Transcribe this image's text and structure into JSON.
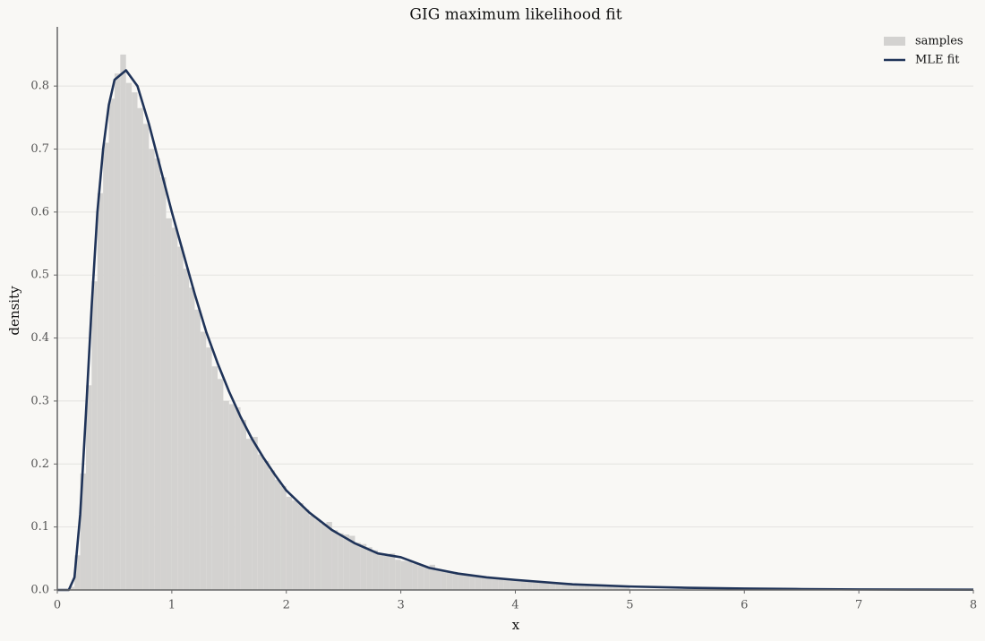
{
  "chart_data": {
    "type": "histogram",
    "title": "GIG maximum likelihood fit",
    "xlabel": "x",
    "ylabel": "density",
    "xlim": [
      0,
      8
    ],
    "ylim": [
      0,
      0.894
    ],
    "xticks": [
      0,
      1,
      2,
      3,
      4,
      5,
      6,
      7,
      8
    ],
    "yticks": [
      {
        "value": 0,
        "label": "0.0"
      },
      0.1,
      0.2,
      0.3,
      0.4,
      0.5,
      0.6,
      0.7,
      0.8
    ],
    "grid": "y",
    "legend": "upper right",
    "series": [
      {
        "name": "samples",
        "type": "histogram",
        "color": "#d3d2d0",
        "bins": [
          0,
          0.05,
          0.1,
          0.15,
          0.2,
          0.25,
          0.3,
          0.35,
          0.4,
          0.45,
          0.5,
          0.55,
          0.6,
          0.65,
          0.7,
          0.75,
          0.8,
          0.85,
          0.9,
          0.95,
          1,
          1.05,
          1.1,
          1.15,
          1.2,
          1.25,
          1.3,
          1.35,
          1.4,
          1.45,
          1.5,
          1.55,
          1.6,
          1.65,
          1.7,
          1.75,
          1.8,
          1.85,
          1.9,
          1.95,
          2,
          2.05,
          2.1,
          2.15,
          2.2,
          2.25,
          2.3,
          2.35,
          2.4,
          2.45,
          2.5,
          2.55,
          2.6,
          2.65,
          2.7,
          2.75,
          2.8,
          2.85,
          2.9,
          2.95,
          3,
          3.05,
          3.1,
          3.15,
          3.2,
          3.25,
          3.3,
          3.35,
          3.4,
          3.45,
          3.5,
          3.55,
          3.6,
          3.65,
          3.7,
          3.75,
          3.8,
          3.85,
          3.9,
          3.95,
          4,
          4.05,
          4.1,
          4.15,
          4.2,
          4.25,
          4.3,
          4.35,
          4.4,
          4.45,
          4.5,
          4.55,
          4.6,
          4.65,
          4.7,
          4.75,
          4.8,
          4.85,
          4.9,
          4.95,
          5
        ],
        "values": [
          0,
          0,
          0.005,
          0.055,
          0.185,
          0.325,
          0.49,
          0.63,
          0.71,
          0.78,
          0.82,
          0.85,
          0.805,
          0.79,
          0.765,
          0.74,
          0.7,
          0.685,
          0.655,
          0.59,
          0.575,
          0.545,
          0.51,
          0.48,
          0.445,
          0.41,
          0.385,
          0.355,
          0.335,
          0.3,
          0.295,
          0.29,
          0.27,
          0.24,
          0.243,
          0.215,
          0.205,
          0.19,
          0.175,
          0.165,
          0.148,
          0.142,
          0.138,
          0.128,
          0.118,
          0.112,
          0.105,
          0.108,
          0.095,
          0.09,
          0.088,
          0.086,
          0.075,
          0.073,
          0.068,
          0.063,
          0.058,
          0.054,
          0.058,
          0.048,
          0.046,
          0.045,
          0.042,
          0.039,
          0.036,
          0.04,
          0.033,
          0.031,
          0.029,
          0.027,
          0.025,
          0.024,
          0.022,
          0.021,
          0.02,
          0.019,
          0.018,
          0.017,
          0.016,
          0.015,
          0.015,
          0.014,
          0.013,
          0.012,
          0.012,
          0.011,
          0.01,
          0.01,
          0.009,
          0.009,
          0.008,
          0.008,
          0.007,
          0.007,
          0.007,
          0.006,
          0.006,
          0.006,
          0.005,
          0.005
        ]
      },
      {
        "name": "MLE fit",
        "type": "line",
        "color": "#1f3358",
        "x": [
          0,
          0.1,
          0.15,
          0.2,
          0.25,
          0.3,
          0.35,
          0.4,
          0.45,
          0.5,
          0.6,
          0.7,
          0.8,
          0.9,
          1,
          1.1,
          1.2,
          1.3,
          1.4,
          1.5,
          1.6,
          1.7,
          1.8,
          1.9,
          2,
          2.2,
          2.4,
          2.6,
          2.8,
          3,
          3.25,
          3.5,
          3.75,
          4,
          4.5,
          5,
          5.5,
          6,
          6.5,
          7,
          7.5,
          8
        ],
        "values": [
          0,
          0,
          0.02,
          0.12,
          0.28,
          0.45,
          0.6,
          0.7,
          0.77,
          0.81,
          0.825,
          0.8,
          0.74,
          0.67,
          0.6,
          0.535,
          0.47,
          0.41,
          0.36,
          0.315,
          0.275,
          0.24,
          0.21,
          0.183,
          0.158,
          0.123,
          0.095,
          0.074,
          0.058,
          0.052,
          0.035,
          0.026,
          0.02,
          0.016,
          0.009,
          0.0055,
          0.0035,
          0.0022,
          0.0014,
          0.0009,
          0.0006,
          0.0004
        ]
      }
    ]
  }
}
